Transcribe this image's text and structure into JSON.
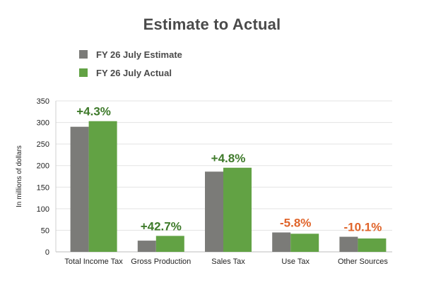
{
  "chart_data": {
    "type": "bar",
    "title": "Estimate to Actual",
    "xlabel": "",
    "ylabel": "In millions of dollars",
    "ylim": [
      0,
      350
    ],
    "yticks": [
      0,
      50,
      100,
      150,
      200,
      250,
      300,
      350
    ],
    "grid": true,
    "legend_position": "top-left",
    "categories": [
      "Total Income Tax",
      "Gross Production",
      "Sales Tax",
      "Use Tax",
      "Other Sources"
    ],
    "series": [
      {
        "name": "FY 26 July Estimate",
        "color": "#7b7b78",
        "values": [
          290,
          26,
          186,
          45,
          35
        ]
      },
      {
        "name": "FY 26 July Actual",
        "color": "#62a244",
        "values": [
          303,
          37,
          195,
          42,
          31
        ]
      }
    ],
    "annotations": [
      {
        "text": "+4.3%",
        "color": "#3e7a2a"
      },
      {
        "text": "+42.7%",
        "color": "#3e7a2a"
      },
      {
        "text": "+4.8%",
        "color": "#3e7a2a"
      },
      {
        "text": "-5.8%",
        "color": "#e0642a"
      },
      {
        "text": "-10.1%",
        "color": "#e0642a"
      }
    ]
  }
}
